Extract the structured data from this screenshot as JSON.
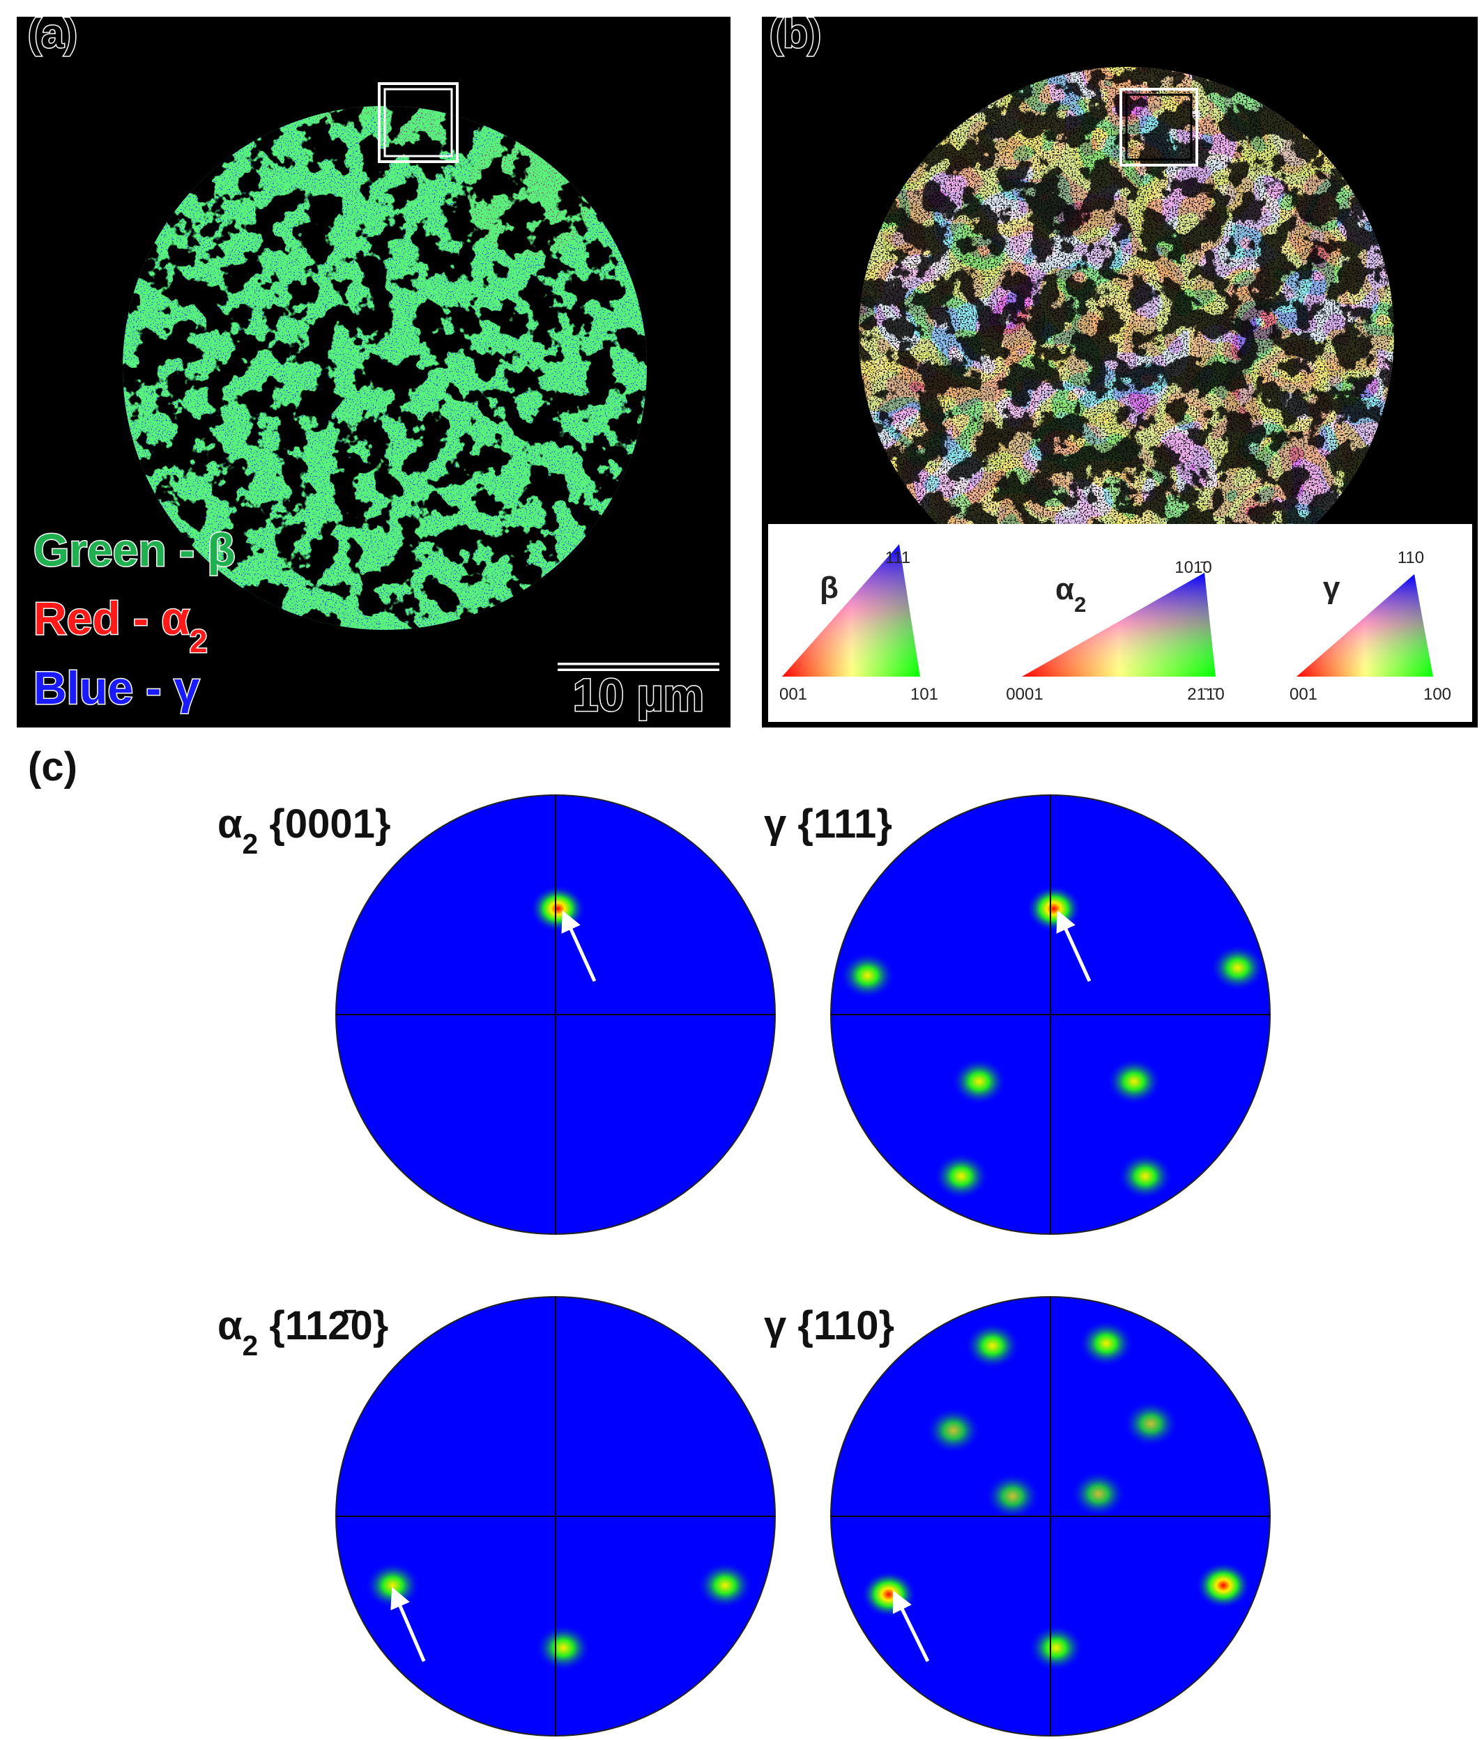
{
  "panels": {
    "a": {
      "label": "(a)",
      "legend": [
        {
          "text": "Green - β"
        },
        {
          "text": "Red - α",
          "sub": "2"
        },
        {
          "text": "Blue - γ"
        }
      ],
      "scale_bar": "10 µm"
    },
    "b": {
      "label": "(b)",
      "key": [
        {
          "phase": {
            "text": "β"
          },
          "corners": [
            "111",
            "001",
            "101"
          ]
        },
        {
          "phase": {
            "text": "α",
            "sub": "2"
          },
          "corners": [
            "101̄0",
            "0001",
            "21̄1̄0"
          ]
        },
        {
          "phase": {
            "text": "γ"
          },
          "corners": [
            "110",
            "001",
            "100"
          ]
        }
      ]
    },
    "c": {
      "label": "(c)",
      "pole_figures": [
        {
          "title": {
            "text": "α",
            "sub": "2",
            "after": " {0001}"
          }
        },
        {
          "title": {
            "text": "γ {111}"
          }
        },
        {
          "title": {
            "text": "α",
            "sub": "2",
            "after": " {112̄0}"
          }
        },
        {
          "title": {
            "text": "γ {110}"
          }
        }
      ]
    }
  }
}
